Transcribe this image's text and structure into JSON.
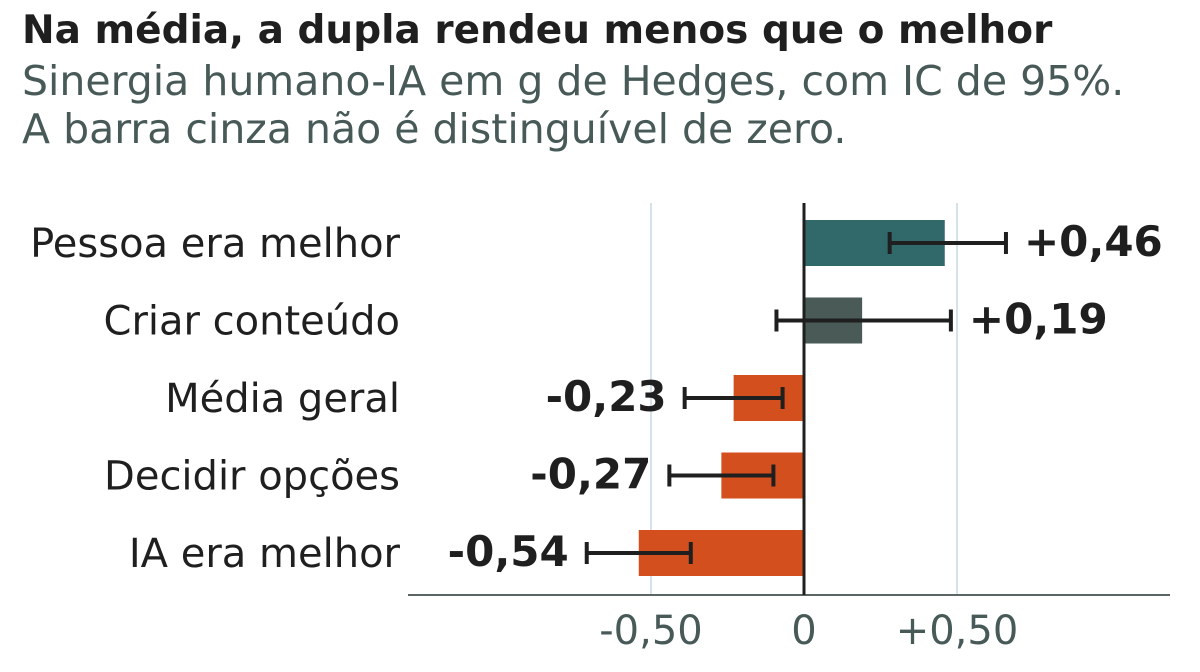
{
  "title": "Na média, a dupla rendeu menos que o melhor",
  "subtitle_line1": "Sinergia humano-IA em g de Hedges, com IC de 95%.",
  "subtitle_line2": "A barra cinza não é distinguível de zero.",
  "chart_data": {
    "type": "bar",
    "orientation": "horizontal",
    "categories": [
      "Pessoa era melhor",
      "Criar conteúdo",
      "Média geral",
      "Decidir opções",
      "IA era melhor"
    ],
    "values": [
      0.46,
      0.19,
      -0.23,
      -0.27,
      -0.54
    ],
    "value_labels": [
      "+0,46",
      "+0,19",
      "-0,23",
      "-0,27",
      "-0,54"
    ],
    "ci_low": [
      0.28,
      -0.09,
      -0.39,
      -0.44,
      -0.71
    ],
    "ci_high": [
      0.66,
      0.48,
      -0.07,
      -0.1,
      -0.37
    ],
    "bar_colors": [
      "#31696a",
      "#4a5a57",
      "#d44f1e",
      "#d44f1e",
      "#d44f1e"
    ],
    "xlim": [
      -1.3,
      1.2
    ],
    "xticks": [
      -0.5,
      0,
      0.5
    ],
    "xtick_labels": [
      "-0,50",
      "0",
      "+0,50"
    ],
    "grid": true,
    "legend": "none"
  }
}
